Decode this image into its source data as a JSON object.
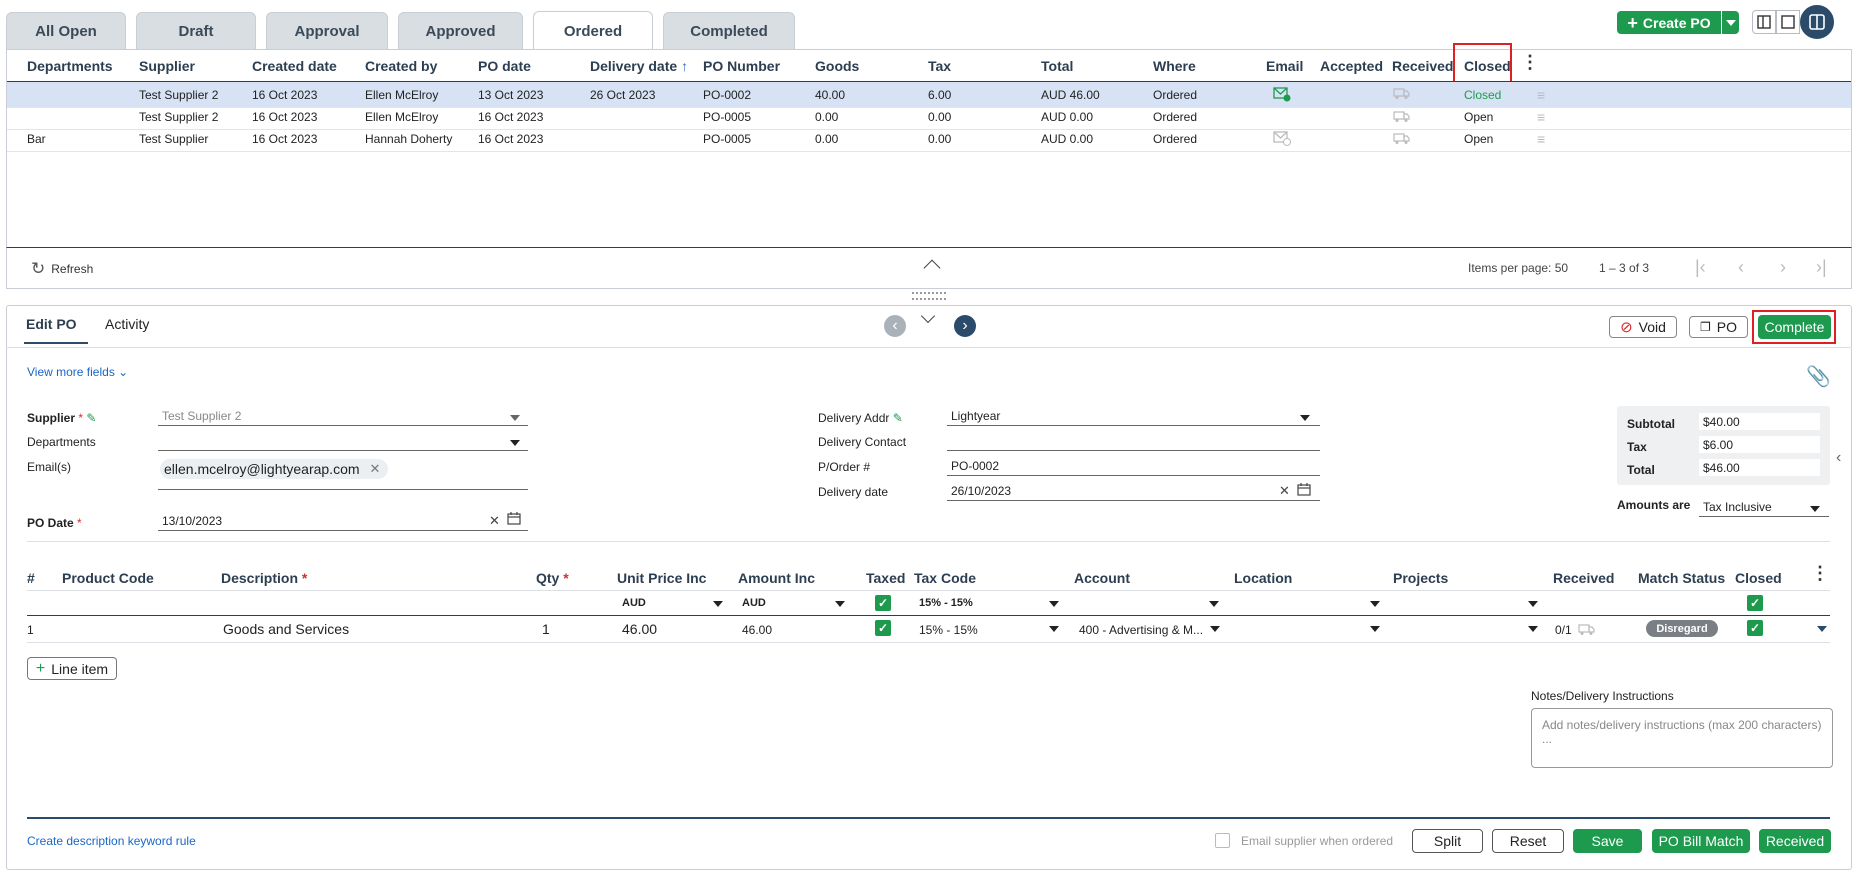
{
  "tabs": [
    "All Open",
    "Draft",
    "Approval",
    "Approved",
    "Ordered",
    "Completed"
  ],
  "toolbar": {
    "create_po": "Create PO"
  },
  "grid": {
    "headers": [
      "Departments",
      "Supplier",
      "Created date",
      "Created by",
      "PO date",
      "Delivery date",
      "PO Number",
      "Goods",
      "Tax",
      "Total",
      "Where",
      "Email",
      "Accepted",
      "Received",
      "Closed"
    ],
    "rows": [
      {
        "dept": "",
        "supplier": "Test Supplier 2",
        "created": "16 Oct 2023",
        "by": "Ellen McElroy",
        "po_date": "13 Oct 2023",
        "delivery": "26 Oct 2023",
        "po_no": "PO-0002",
        "goods": "40.00",
        "tax": "6.00",
        "total": "AUD 46.00",
        "where": "Ordered",
        "closed": "Closed"
      },
      {
        "dept": "",
        "supplier": "Test Supplier 2",
        "created": "16 Oct 2023",
        "by": "Ellen McElroy",
        "po_date": "16 Oct 2023",
        "delivery": "",
        "po_no": "PO-0005",
        "goods": "0.00",
        "tax": "0.00",
        "total": "AUD 0.00",
        "where": "Ordered",
        "closed": "Open"
      },
      {
        "dept": "Bar",
        "supplier": "Test Supplier",
        "created": "16 Oct 2023",
        "by": "Hannah Doherty",
        "po_date": "16 Oct 2023",
        "delivery": "",
        "po_no": "PO-0005",
        "goods": "0.00",
        "tax": "0.00",
        "total": "AUD 0.00",
        "where": "Ordered",
        "closed": "Open"
      }
    ],
    "refresh": "Refresh",
    "items_per_page": "Items per page: 50",
    "range": "1 – 3 of 3"
  },
  "panel": {
    "tab_edit": "Edit PO",
    "tab_activity": "Activity",
    "void": "Void",
    "po": "PO",
    "complete": "Complete",
    "view_more": "View more fields",
    "supplier_label": "Supplier",
    "supplier_value": "Test Supplier 2",
    "departments_label": "Departments",
    "emails_label": "Email(s)",
    "email_chip": "ellen.mcelroy@lightyearap.com",
    "po_date_label": "PO Date",
    "po_date_value": "13/10/2023",
    "delivery_addr_label": "Delivery Addr",
    "delivery_addr_value": "Lightyear",
    "delivery_contact_label": "Delivery Contact",
    "porder_label": "P/Order #",
    "porder_value": "PO-0002",
    "delivery_date_label": "Delivery date",
    "delivery_date_value": "26/10/2023",
    "subtotal_label": "Subtotal",
    "subtotal_value": "$40.00",
    "tax_label": "Tax",
    "tax_value": "$6.00",
    "total_label": "Total",
    "total_value": "$46.00",
    "amounts_label": "Amounts are",
    "amounts_value": "Tax Inclusive"
  },
  "lines": {
    "headers": [
      "#",
      "Product Code",
      "Description",
      "Qty",
      "Unit Price Inc",
      "Amount Inc",
      "Taxed",
      "Tax Code",
      "Account",
      "Location",
      "Projects",
      "Received",
      "Match Status",
      "Closed"
    ],
    "filter_currency1": "AUD",
    "filter_currency2": "AUD",
    "filter_taxcode": "15% - 15%",
    "line": {
      "num": "1",
      "desc": "Goods and Services",
      "qty": "1",
      "unit": "46.00",
      "amount": "46.00",
      "taxcode": "15% - 15%",
      "account": "400 - Advertising & M...",
      "received": "0/1",
      "match": "Disregard"
    },
    "add_line": "Line item"
  },
  "notes": {
    "label": "Notes/Delivery Instructions",
    "placeholder": "Add notes/delivery instructions (max 200 characters) ..."
  },
  "footer": {
    "keyword_rule": "Create description keyword rule",
    "email_supplier": "Email supplier when ordered",
    "split": "Split",
    "reset": "Reset",
    "save": "Save",
    "bill_match": "PO Bill Match",
    "received": "Received"
  }
}
